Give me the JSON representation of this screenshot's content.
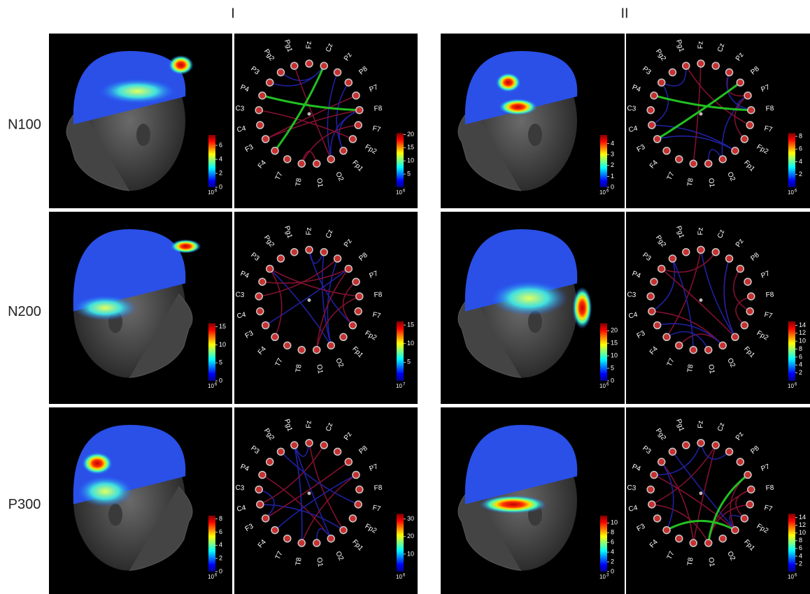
{
  "columns": [
    "I",
    "II"
  ],
  "electrodes": [
    "Fz",
    "Cz",
    "Pz",
    "P8",
    "P7",
    "F8",
    "F7",
    "Fp2",
    "Fp1",
    "O2",
    "O1",
    "T8",
    "T7",
    "F4",
    "F3",
    "C4",
    "C3",
    "P4",
    "P3",
    "Pg2",
    "Pg1"
  ],
  "rows": [
    {
      "label": "N100",
      "groups": [
        {
          "head_colorbar": {
            "lim": [
              0,
              7.5
            ],
            "ticks": [
              0,
              2,
              4,
              6
            ],
            "base": "10",
            "exp": "6"
          },
          "circle_colorbar": {
            "lim": [
              0,
              20.5
            ],
            "ticks": [
              5,
              10,
              15,
              20
            ],
            "base": "10",
            "exp": "6"
          }
        },
        {
          "head_colorbar": {
            "lim": [
              0,
              4.8
            ],
            "ticks": [
              0,
              1,
              2,
              3,
              4
            ],
            "base": "10",
            "exp": "6"
          },
          "circle_colorbar": {
            "lim": [
              0,
              8.5
            ],
            "ticks": [
              2,
              4,
              6,
              8
            ],
            "base": "10",
            "exp": "6"
          }
        }
      ]
    },
    {
      "label": "N200",
      "groups": [
        {
          "head_colorbar": {
            "lim": [
              0,
              16
            ],
            "ticks": [
              0,
              5,
              10,
              15
            ],
            "base": "10",
            "exp": "6"
          },
          "circle_colorbar": {
            "lim": [
              0,
              16
            ],
            "ticks": [
              5,
              10,
              15
            ],
            "base": "10",
            "exp": "7"
          }
        },
        {
          "head_colorbar": {
            "lim": [
              0,
              23
            ],
            "ticks": [
              0,
              5,
              10,
              15,
              20
            ],
            "base": "10",
            "exp": "6"
          },
          "circle_colorbar": {
            "lim": [
              0,
              15
            ],
            "ticks": [
              2,
              4,
              6,
              8,
              10,
              12,
              14
            ],
            "base": "10",
            "exp": "6"
          }
        }
      ]
    },
    {
      "label": "P300",
      "groups": [
        {
          "head_colorbar": {
            "lim": [
              0,
              8.5
            ],
            "ticks": [
              0,
              2,
              4,
              6,
              8
            ],
            "base": "10",
            "exp": "6"
          },
          "circle_colorbar": {
            "lim": [
              0,
              33
            ],
            "ticks": [
              10,
              20,
              30
            ],
            "base": "10",
            "exp": "6"
          }
        },
        {
          "head_colorbar": {
            "lim": [
              0,
              11.5
            ],
            "ticks": [
              0,
              2,
              4,
              6,
              8,
              10
            ],
            "base": "10",
            "exp": "3"
          },
          "circle_colorbar": {
            "lim": [
              0,
              15
            ],
            "ticks": [
              2,
              4,
              6,
              8,
              10,
              12,
              14
            ],
            "base": "10",
            "exp": "6"
          }
        }
      ]
    }
  ]
}
